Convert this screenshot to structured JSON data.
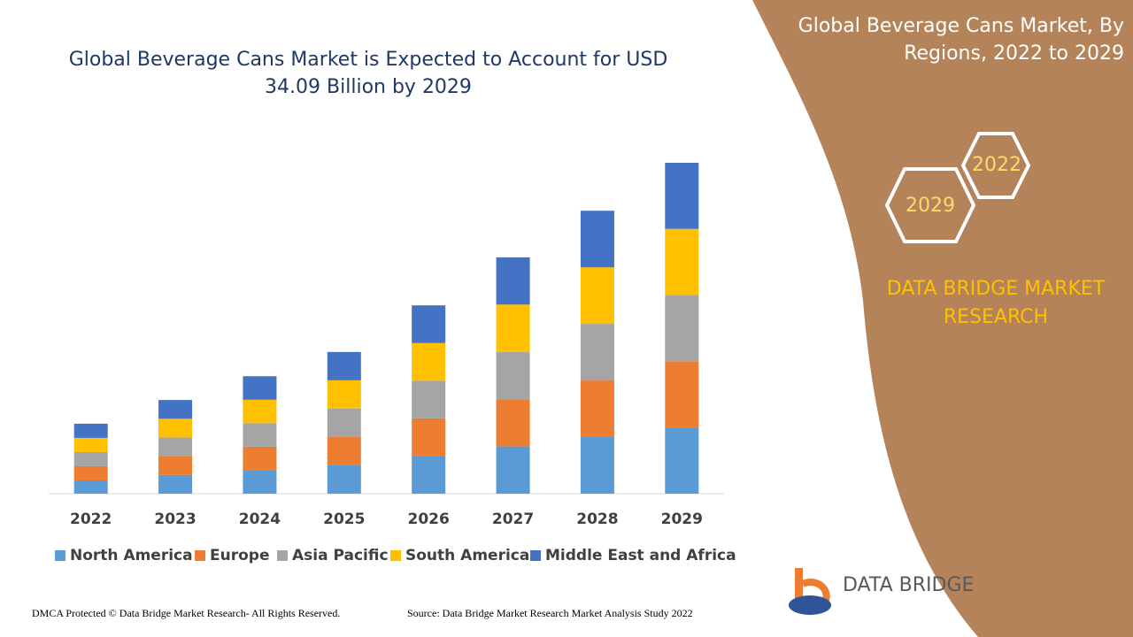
{
  "chart_data": {
    "type": "stacked_bar",
    "title": "Global Beverage Cans Market is Expected to Account for USD 34.09 Billion by 2029",
    "categories": [
      "2022",
      "2023",
      "2024",
      "2025",
      "2026",
      "2027",
      "2028",
      "2029"
    ],
    "series": [
      {
        "name": "North America",
        "color": "#5b9bd5",
        "values": [
          1.37,
          1.93,
          2.42,
          2.92,
          3.88,
          4.87,
          5.83,
          6.82
        ]
      },
      {
        "name": "Europe",
        "color": "#ed7d31",
        "values": [
          1.46,
          1.93,
          2.42,
          2.92,
          3.88,
          4.87,
          5.83,
          6.82
        ]
      },
      {
        "name": "Asia Pacific",
        "color": "#a5a5a5",
        "values": [
          1.46,
          1.93,
          2.42,
          2.92,
          3.88,
          4.87,
          5.83,
          6.82
        ]
      },
      {
        "name": "South America",
        "color": "#ffc000",
        "values": [
          1.46,
          1.93,
          2.42,
          2.92,
          3.88,
          4.87,
          5.83,
          6.82
        ]
      },
      {
        "name": "Middle East and Africa",
        "color": "#4472c4",
        "values": [
          1.46,
          1.93,
          2.42,
          2.92,
          3.88,
          4.87,
          5.83,
          6.81
        ]
      }
    ],
    "legend": "bottom"
  },
  "panel": {
    "title": "Global Beverage Cans Market, By Regions, 2022 to 2029",
    "hexagons": [
      "2022",
      "2029"
    ],
    "brand": "DATA BRIDGE MARKET RESEARCH",
    "logo": "DATA BRIDGE"
  },
  "footer": {
    "copyright": "DMCA Protected © Data Bridge Market Research- All Rights Reserved.",
    "source": "Source: Data Bridge Market Research Market Analysis Study 2022"
  }
}
